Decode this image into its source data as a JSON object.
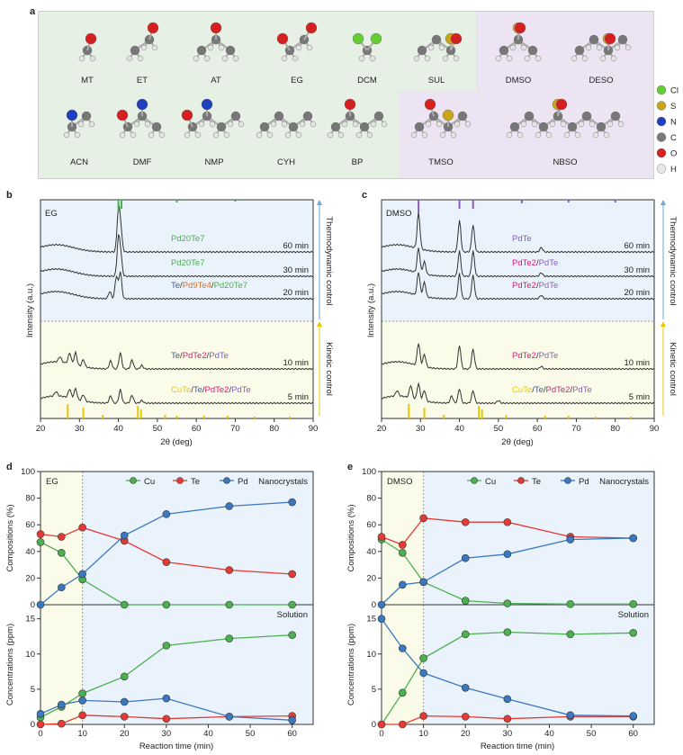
{
  "panel_letters": {
    "a": "a",
    "b": "b",
    "c": "c",
    "d": "d",
    "e": "e"
  },
  "panel_a": {
    "molecules_row1": [
      "MT",
      "ET",
      "AT",
      "EG",
      "DCM",
      "SUL",
      "DMSO",
      "DESO"
    ],
    "molecules_row2": [
      "ACN",
      "DMF",
      "NMP",
      "CYH",
      "BP",
      "TMSO",
      "NBSO"
    ],
    "legend": [
      {
        "symbol": "Cl",
        "color": "#66cc33"
      },
      {
        "symbol": "S",
        "color": "#c8a418"
      },
      {
        "symbol": "N",
        "color": "#1f3fbf"
      },
      {
        "symbol": "C",
        "color": "#7a7a7a"
      },
      {
        "symbol": "O",
        "color": "#d42020"
      },
      {
        "symbol": "H",
        "color": "#e8e8e8"
      }
    ],
    "colors": {
      "left_bg": "#e6f0e4",
      "right_bg": "#ece4f2"
    }
  },
  "panel_b": {
    "solvent": "EG",
    "ylabel": "Intensity (a.u.)",
    "xlabel": "2θ (deg)",
    "xticks": [
      "20",
      "30",
      "40",
      "50",
      "60",
      "70",
      "80",
      "90"
    ],
    "thermo_label": "Thermodynamic control",
    "kinetic_label": "Kinetic control",
    "traces": [
      {
        "time": "60 min",
        "phase": "Pd20Te7"
      },
      {
        "time": "30 min",
        "phase": "Pd20Te7"
      },
      {
        "time": "20 min",
        "phase": "Te/Pd9Te4/Pd20Te7"
      },
      {
        "time": "10 min",
        "phase": "Te/PdTe2/PdTe"
      },
      {
        "time": "5 min",
        "phase": "CuTe/Te/PdTe2/PdTe"
      }
    ]
  },
  "panel_c": {
    "solvent": "DMSO",
    "ylabel": "Intensity (a.u.)",
    "xlabel": "2θ (deg)",
    "xticks": [
      "20",
      "30",
      "40",
      "50",
      "60",
      "70",
      "80",
      "90"
    ],
    "thermo_label": "Thermodynamic control",
    "kinetic_label": "Kinetic control",
    "traces": [
      {
        "time": "60 min",
        "phase": "PdTe"
      },
      {
        "time": "30 min",
        "phase": "PdTe2/PdTe"
      },
      {
        "time": "20 min",
        "phase": "PdTe2/PdTe"
      },
      {
        "time": "10 min",
        "phase": "PdTe2/PdTe"
      },
      {
        "time": "5 min",
        "phase": "CuTe/Te/PdTe2/PdTe"
      }
    ]
  },
  "chart_data": [
    {
      "type": "line",
      "panel": "d-top",
      "annotation": "EG",
      "title_right": "Nanocrystals",
      "ylabel": "Compositions (%)",
      "ylim": [
        0,
        100
      ],
      "x": [
        0,
        5,
        10,
        20,
        30,
        45,
        60
      ],
      "series": [
        {
          "name": "Cu",
          "color": "#4caf50",
          "values": [
            47,
            39,
            19,
            0,
            0,
            0,
            0
          ]
        },
        {
          "name": "Te",
          "color": "#e53935",
          "values": [
            53,
            51,
            58,
            48,
            32,
            26,
            23
          ]
        },
        {
          "name": "Pd",
          "color": "#3a78c0",
          "values": [
            0,
            13,
            23,
            52,
            68,
            74,
            77
          ]
        }
      ]
    },
    {
      "type": "line",
      "panel": "d-bottom",
      "title_right": "Solution",
      "ylabel": "Concentrations (ppm)",
      "xlabel": "Reaction time (min)",
      "ylim": [
        0,
        17
      ],
      "x": [
        0,
        5,
        10,
        20,
        30,
        45,
        60
      ],
      "series": [
        {
          "name": "Cu",
          "color": "#4caf50",
          "values": [
            1.0,
            2.5,
            4.4,
            6.8,
            11.2,
            12.2,
            12.7
          ]
        },
        {
          "name": "Te",
          "color": "#e53935",
          "values": [
            0,
            0.1,
            1.3,
            1.1,
            0.8,
            1.1,
            1.2
          ]
        },
        {
          "name": "Pd",
          "color": "#3a78c0",
          "values": [
            1.5,
            2.8,
            3.4,
            3.2,
            3.7,
            1.1,
            0.6
          ]
        }
      ]
    },
    {
      "type": "line",
      "panel": "e-top",
      "annotation": "DMSO",
      "title_right": "Nanocrystals",
      "ylabel": "Compositions (%)",
      "ylim": [
        0,
        100
      ],
      "x": [
        0,
        5,
        10,
        20,
        30,
        45,
        60
      ],
      "series": [
        {
          "name": "Cu",
          "color": "#4caf50",
          "values": [
            49,
            39,
            17,
            3,
            1,
            0.5,
            0.5
          ]
        },
        {
          "name": "Te",
          "color": "#e53935",
          "values": [
            51,
            45,
            65,
            62,
            62,
            51,
            50
          ]
        },
        {
          "name": "Pd",
          "color": "#3a78c0",
          "values": [
            0,
            15,
            17,
            35,
            38,
            49,
            50
          ]
        }
      ]
    },
    {
      "type": "line",
      "panel": "e-bottom",
      "title_right": "Solution",
      "ylabel": "Concentrations (ppm)",
      "xlabel": "Reaction time (min)",
      "ylim": [
        0,
        17
      ],
      "x": [
        0,
        5,
        10,
        20,
        30,
        45,
        60
      ],
      "series": [
        {
          "name": "Cu",
          "color": "#4caf50",
          "values": [
            0,
            4.5,
            9.4,
            12.8,
            13.1,
            12.8,
            13.0
          ]
        },
        {
          "name": "Te",
          "color": "#e53935",
          "values": [
            0,
            0,
            1.2,
            1.1,
            0.8,
            1.1,
            1.1
          ]
        },
        {
          "name": "Pd",
          "color": "#3a78c0",
          "values": [
            15.0,
            10.8,
            7.3,
            5.2,
            3.6,
            1.3,
            1.2
          ]
        }
      ]
    }
  ],
  "time_ticks": [
    "0",
    "10",
    "20",
    "30",
    "40",
    "50",
    "60"
  ],
  "top_yticks": [
    "0",
    "20",
    "40",
    "60",
    "80",
    "100"
  ],
  "bottom_yticks": [
    "0",
    "5",
    "10",
    "15"
  ]
}
